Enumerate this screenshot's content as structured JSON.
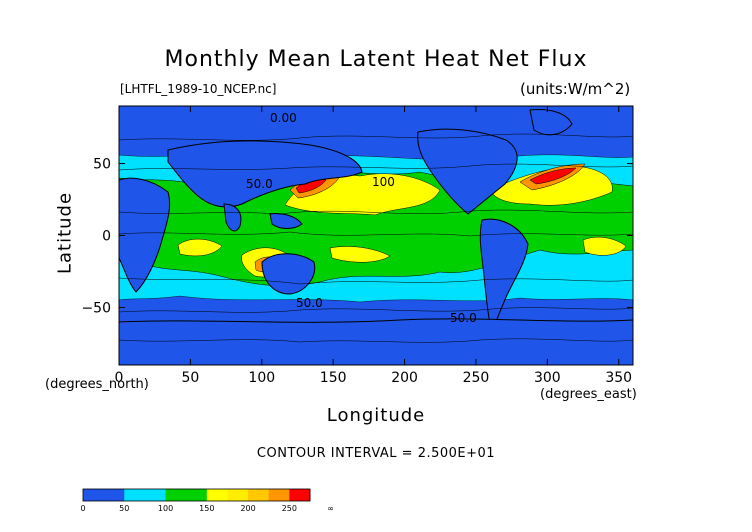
{
  "chart_data": {
    "type": "heatmap",
    "title": "Monthly Mean Latent Heat Net Flux",
    "subtitle_left": "[LHTFL_1989-10_NCEP.nc]",
    "subtitle_right": "(units:W/m^2)",
    "xlabel": "Longitude",
    "ylabel": "Latitude",
    "x_units": "(degrees_east)",
    "y_units": "(degrees_north)",
    "xlim": [
      0,
      360
    ],
    "ylim": [
      -90,
      90
    ],
    "x_ticks": [
      0,
      50,
      100,
      150,
      200,
      250,
      300,
      350
    ],
    "y_ticks": [
      50,
      0,
      -50
    ],
    "contour_interval_text": "CONTOUR INTERVAL = 2.500E+01",
    "contour_labels": [
      "0.00",
      "50.0",
      "100",
      "50.0",
      "50.0"
    ],
    "colorbar": {
      "boundaries": [
        0,
        25,
        50,
        75,
        100,
        125,
        150,
        175,
        200,
        225,
        250,
        275
      ],
      "tick_labels": [
        "0",
        "50",
        "100",
        "150",
        "200",
        "250",
        "∞"
      ],
      "colors": [
        "#1f55e8",
        "#1f55e8",
        "#00e1ff",
        "#00e1ff",
        "#00d000",
        "#00d000",
        "#ffff00",
        "#ffee00",
        "#ffc800",
        "#ff9600",
        "#ff0000"
      ]
    },
    "field_colors": {
      "low": "#1f55e8",
      "mid_low": "#00e1ff",
      "mid": "#00d000",
      "high": "#ffff00",
      "very_high": "#ff9600",
      "max": "#ff0000",
      "land": "#1f55e8"
    }
  }
}
